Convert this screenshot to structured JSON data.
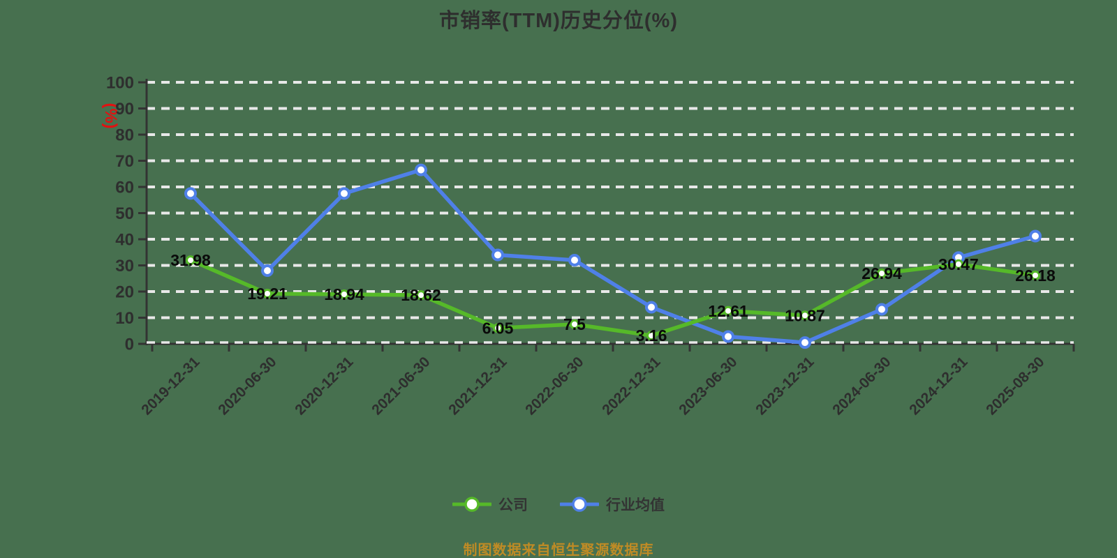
{
  "title": "市销率(TTM)历史分位(%)",
  "y_axis": {
    "name": "(%)",
    "name_color": "#e01212",
    "ticks": [
      0,
      10,
      20,
      30,
      40,
      50,
      60,
      70,
      80,
      90,
      100
    ]
  },
  "source_note": "制图数据来自恒生聚源数据库",
  "colors": {
    "background": "#47704f",
    "grid_line": "#e8e8e8",
    "axis_line": "#333333",
    "tick_label": "#2e2e2e",
    "data_label": "#0a0a0a",
    "company_green": "#56b929",
    "industry_blue": "#4f80e8",
    "source_orange": "#bf8b25",
    "title_color": "#2e2e2e"
  },
  "chart_data": {
    "type": "line",
    "title": "市销率(TTM)历史分位(%)",
    "ylabel": "(%)",
    "xlabel": "",
    "ylim": [
      0,
      100
    ],
    "ytick_step": 10,
    "grid": "horizontal-dashed",
    "legend_position": "bottom",
    "x_label_rotation": 45,
    "categories": [
      "2019-12-31",
      "2020-06-30",
      "2020-12-31",
      "2021-06-30",
      "2021-12-31",
      "2022-06-30",
      "2022-12-31",
      "2023-06-30",
      "2023-12-31",
      "2024-06-30",
      "2024-12-31",
      "2025-08-30"
    ],
    "series": [
      {
        "name": "公司",
        "color": "#56b929",
        "values": [
          31.98,
          19.21,
          18.94,
          18.62,
          6.05,
          7.5,
          3.16,
          12.61,
          10.87,
          26.94,
          30.47,
          26.18
        ],
        "labels": [
          "31.98",
          "19.21",
          "18.94",
          "18.62",
          "6.05",
          "7.5",
          "3.16",
          "12.61",
          "10.87",
          "26.94",
          "30.47",
          "26.18"
        ],
        "show_labels": true
      },
      {
        "name": "行业均值",
        "color": "#4f80e8",
        "values": [
          57.5,
          28,
          57.5,
          66.5,
          34,
          32,
          14,
          2.8,
          0.5,
          13.2,
          33,
          41.2
        ],
        "labels": [],
        "show_labels": false,
        "values_estimated_from_pixels": true
      }
    ]
  }
}
